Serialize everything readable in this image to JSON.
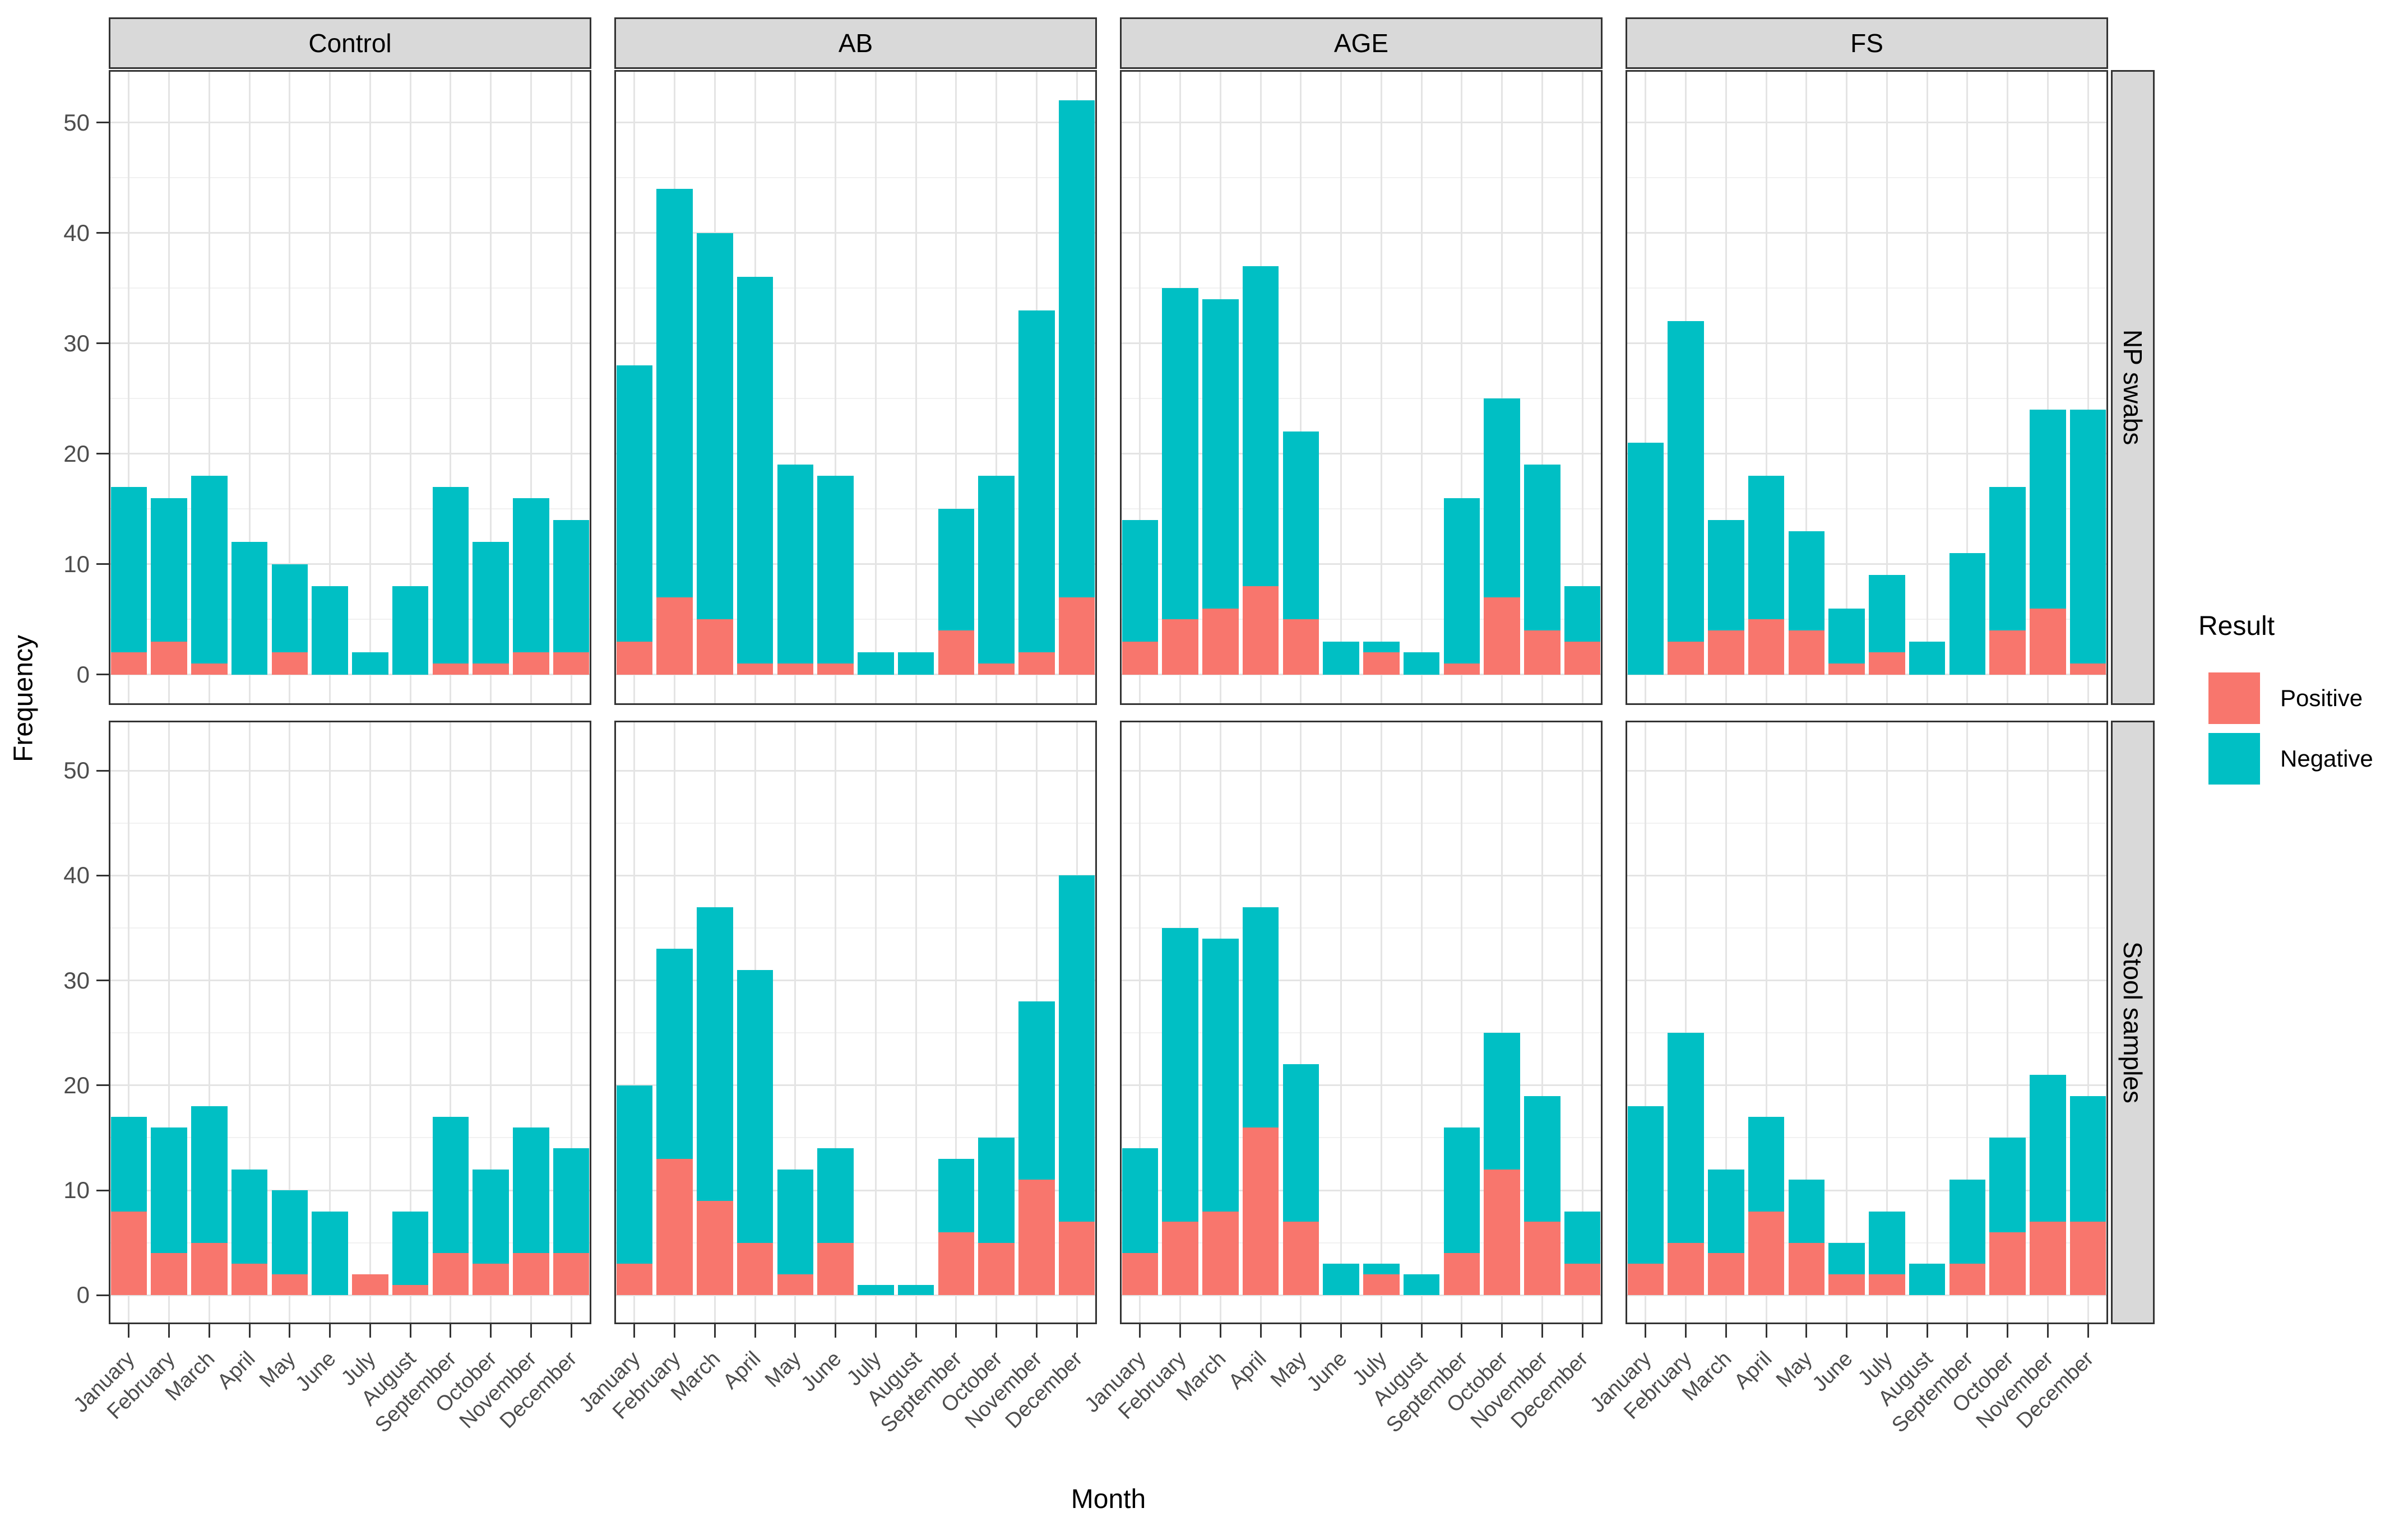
{
  "colors": {
    "positive": "#F8766D",
    "negative": "#00BFC4",
    "strip_bg": "#D9D9D9",
    "panel_border": "#333333",
    "axis_text": "#4D4D4D",
    "title_text": "#000000",
    "grid_major": "#E4E4E4",
    "grid_minor": "#F1F1F1"
  },
  "legend": {
    "title": "Result",
    "entries": [
      {
        "label": "Positive",
        "color": "#F8766D"
      },
      {
        "label": "Negative",
        "color": "#00BFC4"
      }
    ]
  },
  "axes": {
    "x_title": "Month",
    "y_title": "Frequency"
  },
  "chart_data": {
    "type": "bar",
    "stacked": true,
    "grid": "on",
    "legend_position": "right",
    "xlabel": "Month",
    "ylabel": "Frequency",
    "ylim": [
      0,
      50
    ],
    "yticks": [
      0,
      10,
      20,
      30,
      40,
      50
    ],
    "yticks_minor": [
      5,
      15,
      25,
      35,
      45
    ],
    "y_expanded_domain": [
      -2.6,
      54.6
    ],
    "categories": [
      "January",
      "February",
      "March",
      "April",
      "May",
      "June",
      "July",
      "August",
      "September",
      "October",
      "November",
      "December"
    ],
    "facet_columns": [
      "Control",
      "AB",
      "AGE",
      "FS"
    ],
    "facet_rows": [
      "NP swabs",
      "Stool samples"
    ],
    "series_names": [
      "Positive",
      "Negative"
    ],
    "panels": [
      {
        "row": "NP swabs",
        "column": "Control",
        "series": [
          {
            "name": "Positive",
            "values": [
              2,
              3,
              1,
              0,
              2,
              0,
              0,
              0,
              1,
              1,
              2,
              2
            ]
          },
          {
            "name": "Negative",
            "values": [
              15,
              13,
              17,
              12,
              8,
              8,
              2,
              8,
              16,
              11,
              14,
              12
            ]
          }
        ]
      },
      {
        "row": "NP swabs",
        "column": "AB",
        "series": [
          {
            "name": "Positive",
            "values": [
              3,
              7,
              5,
              1,
              1,
              1,
              0,
              0,
              4,
              1,
              2,
              7
            ]
          },
          {
            "name": "Negative",
            "values": [
              25,
              37,
              35,
              35,
              18,
              17,
              2,
              2,
              11,
              17,
              31,
              45
            ]
          }
        ]
      },
      {
        "row": "NP swabs",
        "column": "AGE",
        "series": [
          {
            "name": "Positive",
            "values": [
              3,
              5,
              6,
              8,
              5,
              0,
              2,
              0,
              1,
              7,
              4,
              3
            ]
          },
          {
            "name": "Negative",
            "values": [
              11,
              30,
              28,
              29,
              17,
              3,
              1,
              2,
              15,
              18,
              15,
              5
            ]
          }
        ]
      },
      {
        "row": "NP swabs",
        "column": "FS",
        "series": [
          {
            "name": "Positive",
            "values": [
              0,
              3,
              4,
              5,
              4,
              1,
              2,
              0,
              0,
              4,
              6,
              1
            ]
          },
          {
            "name": "Negative",
            "values": [
              21,
              29,
              10,
              13,
              9,
              5,
              7,
              3,
              11,
              13,
              18,
              23
            ]
          }
        ]
      },
      {
        "row": "Stool samples",
        "column": "Control",
        "series": [
          {
            "name": "Positive",
            "values": [
              8,
              4,
              5,
              3,
              2,
              0,
              2,
              1,
              4,
              3,
              4,
              4
            ]
          },
          {
            "name": "Negative",
            "values": [
              9,
              12,
              13,
              9,
              8,
              8,
              0,
              7,
              13,
              9,
              12,
              10
            ]
          }
        ]
      },
      {
        "row": "Stool samples",
        "column": "AB",
        "series": [
          {
            "name": "Positive",
            "values": [
              3,
              13,
              9,
              5,
              2,
              5,
              0,
              0,
              6,
              5,
              11,
              7
            ]
          },
          {
            "name": "Negative",
            "values": [
              17,
              20,
              28,
              26,
              10,
              9,
              1,
              1,
              7,
              10,
              17,
              33
            ]
          }
        ]
      },
      {
        "row": "Stool samples",
        "column": "AGE",
        "series": [
          {
            "name": "Positive",
            "values": [
              4,
              7,
              8,
              16,
              7,
              0,
              2,
              0,
              4,
              12,
              7,
              3
            ]
          },
          {
            "name": "Negative",
            "values": [
              10,
              28,
              26,
              21,
              15,
              3,
              1,
              2,
              12,
              13,
              12,
              5
            ]
          }
        ]
      },
      {
        "row": "Stool samples",
        "column": "FS",
        "series": [
          {
            "name": "Positive",
            "values": [
              3,
              5,
              4,
              8,
              5,
              2,
              2,
              0,
              3,
              6,
              7,
              7
            ]
          },
          {
            "name": "Negative",
            "values": [
              15,
              20,
              8,
              9,
              6,
              3,
              6,
              3,
              8,
              9,
              14,
              12
            ]
          }
        ]
      }
    ]
  }
}
